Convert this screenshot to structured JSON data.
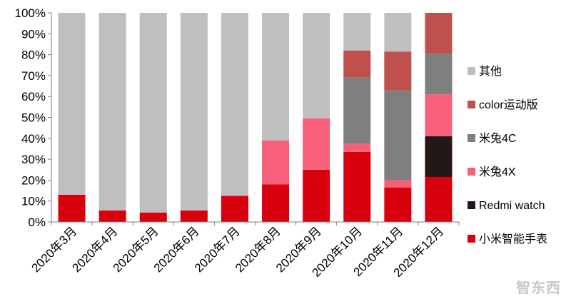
{
  "chart_data": {
    "type": "bar",
    "stacked": true,
    "categories": [
      "2020年3月",
      "2020年4月",
      "2020年5月",
      "2020年6月",
      "2020年7月",
      "2020年8月",
      "2020年9月",
      "2020年10月",
      "2020年11月",
      "2020年12月"
    ],
    "series": [
      {
        "name": "小米智能手表",
        "color": "#d9000d",
        "values": [
          13,
          5.5,
          4.5,
          5.5,
          12.5,
          18,
          25,
          33.5,
          16.5,
          21.5
        ]
      },
      {
        "name": "Redmi watch",
        "color": "#231815",
        "values": [
          0,
          0,
          0,
          0,
          0,
          0,
          0,
          0,
          0,
          19.5
        ]
      },
      {
        "name": "米兔4X",
        "color": "#f8607a",
        "values": [
          0,
          0,
          0,
          0,
          0,
          21,
          24.5,
          4,
          3.5,
          20
        ]
      },
      {
        "name": "米兔4C",
        "color": "#7f7f7f",
        "values": [
          0,
          0,
          0,
          0,
          0,
          0,
          0,
          31.5,
          43,
          19.5
        ]
      },
      {
        "name": "color运动版",
        "color": "#c0504d",
        "values": [
          0,
          0,
          0,
          0,
          0,
          0,
          0,
          13,
          18.5,
          19.5
        ]
      },
      {
        "name": "其他",
        "color": "#bfbfbf",
        "values": [
          87,
          94.5,
          95.5,
          94.5,
          87.5,
          61,
          50.5,
          18,
          18.5,
          0
        ]
      }
    ],
    "yticks": [
      "0%",
      "10%",
      "20%",
      "30%",
      "40%",
      "50%",
      "60%",
      "70%",
      "80%",
      "90%",
      "100%"
    ],
    "ylim": [
      0,
      100
    ],
    "legend_position": "right",
    "grid": false
  },
  "watermark": "智东西"
}
